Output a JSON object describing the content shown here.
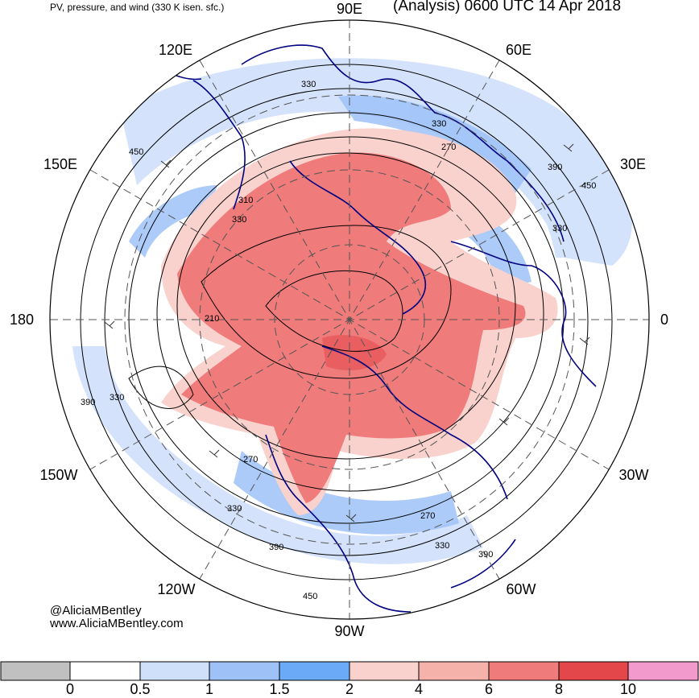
{
  "header": {
    "left_title": "PV, pressure, and wind (330 K isen. sfc.)",
    "right_title": "(Analysis) 0600 UTC 14 Apr 2018"
  },
  "credits": {
    "handle": "@AliciaMBentley",
    "website": "www.AliciaMBentley.com"
  },
  "longitude_labels": [
    "90E",
    "60E",
    "30E",
    "0",
    "30W",
    "60W",
    "90W",
    "120W",
    "150W",
    "180",
    "150E",
    "120E"
  ],
  "contour_labels": [
    "330",
    "450",
    "330",
    "270",
    "390",
    "450",
    "310",
    "330",
    "210",
    "390",
    "330",
    "270",
    "330",
    "270",
    "330",
    "390",
    "390",
    "450"
  ],
  "colorbar": {
    "colors": [
      "#c0c0c0",
      "#ffffff",
      "#cfe0fb",
      "#9ec2f8",
      "#6baaf6",
      "#f9d2cd",
      "#f5b2ab",
      "#ef7b7a",
      "#e3474a",
      "#f29acb"
    ],
    "labels": [
      "0",
      "0.5",
      "1",
      "1.5",
      "2",
      "4",
      "6",
      "8",
      "10"
    ]
  },
  "colors": {
    "coastline": "#000080",
    "contour": "#000000",
    "pv_high": "#ef7b7a",
    "pv_mid": "#f9d2cd",
    "pv_low": "#9ec2f8"
  }
}
